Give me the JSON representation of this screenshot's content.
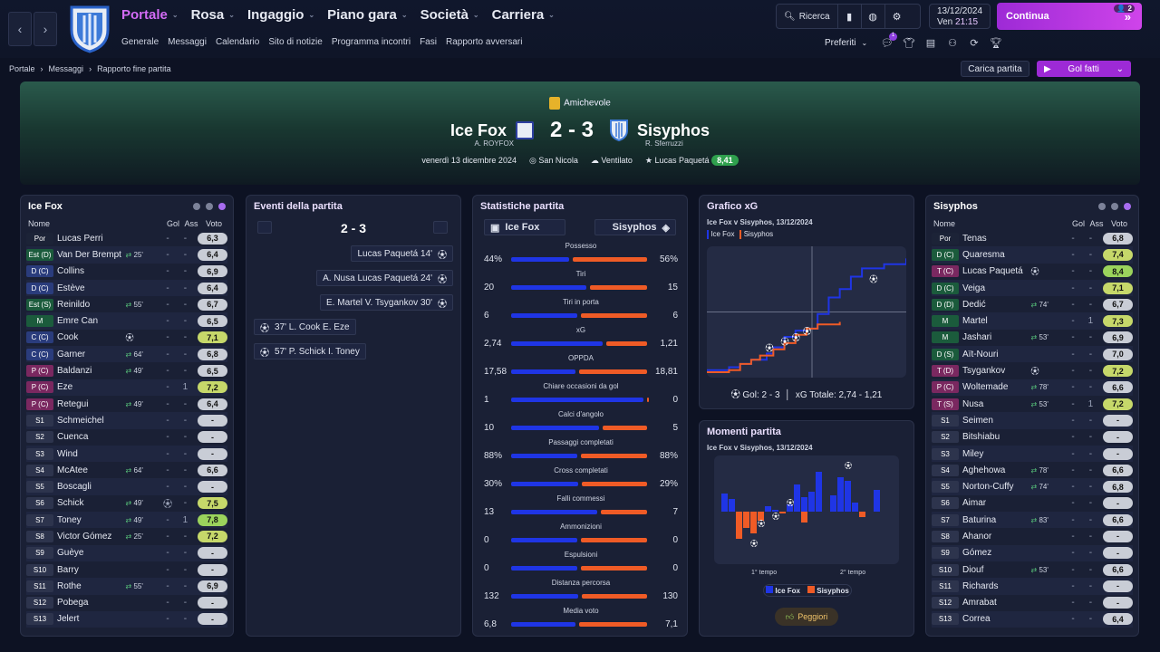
{
  "nav": {
    "main": [
      "Portale",
      "Rosa",
      "Ingaggio",
      "Piano gara",
      "Società",
      "Carriera"
    ],
    "sub": [
      "Generale",
      "Messaggi",
      "Calendario",
      "Sito di notizie",
      "Programma incontri",
      "Fasi",
      "Rapporto avversari"
    ],
    "search_label": "Ricerca",
    "date": "13/12/2024",
    "day": "Ven",
    "time": "21:15",
    "continue_label": "Continua",
    "continue_badge": "2",
    "preferiti": "Preferiti",
    "notif_count": "1"
  },
  "breadcrumb": [
    "Portale",
    "Messaggi",
    "Rapporto fine partita"
  ],
  "actions": {
    "carica": "Carica partita",
    "gol": "Gol fatti"
  },
  "match": {
    "competition": "Amichevole",
    "home": "Ice Fox",
    "away": "Sisyphos",
    "home_coach": "A. ROYFOX",
    "away_coach": "R. Sferruzzi",
    "score": "2 - 3",
    "date": "venerdì 13 dicembre 2024",
    "stadium": "San Nicola",
    "weather": "Ventilato",
    "potm": "Lucas Paquetá",
    "potm_rating": "8,41"
  },
  "cols": {
    "name": "Nome",
    "gol": "Gol",
    "ass": "Ass",
    "voto": "Voto"
  },
  "home_team": {
    "title": "Ice Fox",
    "players": [
      {
        "pos": "Por",
        "name": "Lucas Perri",
        "sub": "",
        "g": "-",
        "a": "-",
        "v": "6,3",
        "pc": "#1c2337",
        "vc": "#c9cdd6"
      },
      {
        "pos": "Est (D)",
        "name": "Van Der Brempt",
        "sub": "25'",
        "g": "-",
        "a": "-",
        "v": "6,4",
        "pc": "#1b5b3c",
        "vc": "#c9cdd6"
      },
      {
        "pos": "D (C)",
        "name": "Collins",
        "sub": "",
        "g": "-",
        "a": "-",
        "v": "6,9",
        "pc": "#2a3c7c",
        "vc": "#c9cdd6"
      },
      {
        "pos": "D (C)",
        "name": "Estève",
        "sub": "",
        "g": "-",
        "a": "-",
        "v": "6,4",
        "pc": "#2a3c7c",
        "vc": "#c9cdd6"
      },
      {
        "pos": "Est (S)",
        "name": "Reinildo",
        "sub": "55'",
        "g": "-",
        "a": "-",
        "v": "6,7",
        "pc": "#1b5b3c",
        "vc": "#c9cdd6"
      },
      {
        "pos": "M",
        "name": "Emre Can",
        "sub": "",
        "g": "-",
        "a": "-",
        "v": "6,5",
        "pc": "#1b5b3c",
        "vc": "#c9cdd6"
      },
      {
        "pos": "C (C)",
        "name": "Cook",
        "sub": "ball",
        "g": "-",
        "a": "-",
        "v": "7,1",
        "pc": "#2a3c7c",
        "vc": "#c6d86a"
      },
      {
        "pos": "C (C)",
        "name": "Garner",
        "sub": "64'",
        "g": "-",
        "a": "-",
        "v": "6,8",
        "pc": "#2a3c7c",
        "vc": "#c9cdd6"
      },
      {
        "pos": "P (C)",
        "name": "Baldanzi",
        "sub": "49'",
        "g": "-",
        "a": "-",
        "v": "6,5",
        "pc": "#7a2860",
        "vc": "#c9cdd6"
      },
      {
        "pos": "P (C)",
        "name": "Eze",
        "sub": "",
        "g": "-",
        "a": "1",
        "v": "7,2",
        "pc": "#7a2860",
        "vc": "#c6d86a"
      },
      {
        "pos": "P (C)",
        "name": "Retegui",
        "sub": "49'",
        "g": "-",
        "a": "-",
        "v": "6,4",
        "pc": "#7a2860",
        "vc": "#c9cdd6"
      },
      {
        "pos": "S1",
        "name": "Schmeichel",
        "sub": "",
        "g": "-",
        "a": "-",
        "v": "-",
        "pc": "#2d344d",
        "vc": "#c9cdd6"
      },
      {
        "pos": "S2",
        "name": "Cuenca",
        "sub": "",
        "g": "-",
        "a": "-",
        "v": "-",
        "pc": "#2d344d",
        "vc": "#c9cdd6"
      },
      {
        "pos": "S3",
        "name": "Wind",
        "sub": "",
        "g": "-",
        "a": "-",
        "v": "-",
        "pc": "#2d344d",
        "vc": "#c9cdd6"
      },
      {
        "pos": "S4",
        "name": "McAtee",
        "sub": "64'",
        "g": "-",
        "a": "-",
        "v": "6,6",
        "pc": "#2d344d",
        "vc": "#c9cdd6"
      },
      {
        "pos": "S5",
        "name": "Boscagli",
        "sub": "",
        "g": "-",
        "a": "-",
        "v": "-",
        "pc": "#2d344d",
        "vc": "#c9cdd6"
      },
      {
        "pos": "S6",
        "name": "Schick",
        "sub": "49'",
        "g": "ball",
        "a": "-",
        "v": "7,5",
        "pc": "#2d344d",
        "vc": "#c6d86a"
      },
      {
        "pos": "S7",
        "name": "Toney",
        "sub": "49'",
        "g": "-",
        "a": "1",
        "v": "7,8",
        "pc": "#2d344d",
        "vc": "#9bd35c"
      },
      {
        "pos": "S8",
        "name": "Victor Gómez",
        "sub": "25'",
        "g": "-",
        "a": "-",
        "v": "7,2",
        "pc": "#2d344d",
        "vc": "#c6d86a"
      },
      {
        "pos": "S9",
        "name": "Guèye",
        "sub": "",
        "g": "-",
        "a": "-",
        "v": "-",
        "pc": "#2d344d",
        "vc": "#c9cdd6"
      },
      {
        "pos": "S10",
        "name": "Barry",
        "sub": "",
        "g": "-",
        "a": "-",
        "v": "-",
        "pc": "#2d344d",
        "vc": "#c9cdd6"
      },
      {
        "pos": "S11",
        "name": "Rothe",
        "sub": "55'",
        "g": "-",
        "a": "-",
        "v": "6,9",
        "pc": "#2d344d",
        "vc": "#c9cdd6"
      },
      {
        "pos": "S12",
        "name": "Pobega",
        "sub": "",
        "g": "-",
        "a": "-",
        "v": "-",
        "pc": "#2d344d",
        "vc": "#c9cdd6"
      },
      {
        "pos": "S13",
        "name": "Jelert",
        "sub": "",
        "g": "-",
        "a": "-",
        "v": "-",
        "pc": "#2d344d",
        "vc": "#c9cdd6"
      }
    ]
  },
  "away_team": {
    "title": "Sisyphos",
    "players": [
      {
        "pos": "Por",
        "name": "Tenas",
        "sub": "",
        "g": "-",
        "a": "-",
        "v": "6,8",
        "pc": "#1c2337",
        "vc": "#c9cdd6"
      },
      {
        "pos": "D (C)",
        "name": "Quaresma",
        "sub": "",
        "g": "-",
        "a": "-",
        "v": "7,4",
        "pc": "#1b5b3c",
        "vc": "#c6d86a"
      },
      {
        "pos": "T (C)",
        "name": "Lucas Paquetá",
        "sub": "ball",
        "g": "-",
        "a": "-",
        "v": "8,4",
        "pc": "#7a2860",
        "vc": "#9bd35c"
      },
      {
        "pos": "D (C)",
        "name": "Veiga",
        "sub": "",
        "g": "-",
        "a": "-",
        "v": "7,1",
        "pc": "#1b5b3c",
        "vc": "#c6d86a"
      },
      {
        "pos": "D (D)",
        "name": "Dedić",
        "sub": "74'",
        "g": "-",
        "a": "-",
        "v": "6,7",
        "pc": "#1b5b3c",
        "vc": "#c9cdd6"
      },
      {
        "pos": "M",
        "name": "Martel",
        "sub": "",
        "g": "-",
        "a": "1",
        "v": "7,3",
        "pc": "#1b5b3c",
        "vc": "#c6d86a"
      },
      {
        "pos": "M",
        "name": "Jashari",
        "sub": "53'",
        "g": "-",
        "a": "-",
        "v": "6,9",
        "pc": "#1b5b3c",
        "vc": "#c9cdd6"
      },
      {
        "pos": "D (S)",
        "name": "Aït-Nouri",
        "sub": "",
        "g": "-",
        "a": "-",
        "v": "7,0",
        "pc": "#1b5b3c",
        "vc": "#c9cdd6"
      },
      {
        "pos": "T (D)",
        "name": "Tsygankov",
        "sub": "ball",
        "g": "-",
        "a": "-",
        "v": "7,2",
        "pc": "#7a2860",
        "vc": "#c6d86a"
      },
      {
        "pos": "P (C)",
        "name": "Woltemade",
        "sub": "78'",
        "g": "-",
        "a": "-",
        "v": "6,6",
        "pc": "#7a2860",
        "vc": "#c9cdd6"
      },
      {
        "pos": "T (S)",
        "name": "Nusa",
        "sub": "53'",
        "g": "-",
        "a": "1",
        "v": "7,2",
        "pc": "#7a2860",
        "vc": "#c6d86a"
      },
      {
        "pos": "S1",
        "name": "Seimen",
        "sub": "",
        "g": "-",
        "a": "-",
        "v": "-",
        "pc": "#2d344d",
        "vc": "#c9cdd6"
      },
      {
        "pos": "S2",
        "name": "Bitshiabu",
        "sub": "",
        "g": "-",
        "a": "-",
        "v": "-",
        "pc": "#2d344d",
        "vc": "#c9cdd6"
      },
      {
        "pos": "S3",
        "name": "Miley",
        "sub": "",
        "g": "-",
        "a": "-",
        "v": "-",
        "pc": "#2d344d",
        "vc": "#c9cdd6"
      },
      {
        "pos": "S4",
        "name": "Aghehowa",
        "sub": "78'",
        "g": "-",
        "a": "-",
        "v": "6,6",
        "pc": "#2d344d",
        "vc": "#c9cdd6"
      },
      {
        "pos": "S5",
        "name": "Norton-Cuffy",
        "sub": "74'",
        "g": "-",
        "a": "-",
        "v": "6,8",
        "pc": "#2d344d",
        "vc": "#c9cdd6"
      },
      {
        "pos": "S6",
        "name": "Aimar",
        "sub": "",
        "g": "-",
        "a": "-",
        "v": "-",
        "pc": "#2d344d",
        "vc": "#c9cdd6"
      },
      {
        "pos": "S7",
        "name": "Baturina",
        "sub": "83'",
        "g": "-",
        "a": "-",
        "v": "6,6",
        "pc": "#2d344d",
        "vc": "#c9cdd6"
      },
      {
        "pos": "S8",
        "name": "Ahanor",
        "sub": "",
        "g": "-",
        "a": "-",
        "v": "-",
        "pc": "#2d344d",
        "vc": "#c9cdd6"
      },
      {
        "pos": "S9",
        "name": "Gómez",
        "sub": "",
        "g": "-",
        "a": "-",
        "v": "-",
        "pc": "#2d344d",
        "vc": "#c9cdd6"
      },
      {
        "pos": "S10",
        "name": "Diouf",
        "sub": "53'",
        "g": "-",
        "a": "-",
        "v": "6,6",
        "pc": "#2d344d",
        "vc": "#c9cdd6"
      },
      {
        "pos": "S11",
        "name": "Richards",
        "sub": "",
        "g": "-",
        "a": "-",
        "v": "-",
        "pc": "#2d344d",
        "vc": "#c9cdd6"
      },
      {
        "pos": "S12",
        "name": "Amrabat",
        "sub": "",
        "g": "-",
        "a": "-",
        "v": "-",
        "pc": "#2d344d",
        "vc": "#c9cdd6"
      },
      {
        "pos": "S13",
        "name": "Correa",
        "sub": "",
        "g": "-",
        "a": "-",
        "v": "6,4",
        "pc": "#2d344d",
        "vc": "#c9cdd6"
      }
    ]
  },
  "events": {
    "title": "Eventi della partita",
    "score": "2 - 3",
    "away": [
      "Lucas Paquetá 14'",
      "A. Nusa Lucas Paquetá 24'",
      "E. Martel V. Tsygankov 30'"
    ],
    "home": [
      "37' L. Cook E. Eze",
      "57' P. Schick I. Toney"
    ]
  },
  "stats": {
    "title": "Statistiche partita",
    "home": "Ice Fox",
    "away": "Sisyphos",
    "rows": [
      {
        "label": "Possesso",
        "l": "44%",
        "r": "56%",
        "lv": 44,
        "rv": 56
      },
      {
        "label": "Tiri",
        "l": "20",
        "r": "15",
        "lv": 20,
        "rv": 15
      },
      {
        "label": "Tiri in porta",
        "l": "6",
        "r": "6",
        "lv": 6,
        "rv": 6
      },
      {
        "label": "xG",
        "l": "2,74",
        "r": "1,21",
        "lv": 2.74,
        "rv": 1.21
      },
      {
        "label": "OPPDA",
        "l": "17,58",
        "r": "18,81",
        "lv": 17.58,
        "rv": 18.81
      },
      {
        "label": "Chiare occasioni da gol",
        "l": "1",
        "r": "0",
        "lv": 1,
        "rv": 0
      },
      {
        "label": "Calci d'angolo",
        "l": "10",
        "r": "5",
        "lv": 10,
        "rv": 5
      },
      {
        "label": "Passaggi completati",
        "l": "88%",
        "r": "88%",
        "lv": 88,
        "rv": 88
      },
      {
        "label": "Cross completati",
        "l": "30%",
        "r": "29%",
        "lv": 30,
        "rv": 29
      },
      {
        "label": "Falli commessi",
        "l": "13",
        "r": "7",
        "lv": 13,
        "rv": 7
      },
      {
        "label": "Ammonizioni",
        "l": "0",
        "r": "0",
        "lv": 0,
        "rv": 0
      },
      {
        "label": "Espulsioni",
        "l": "0",
        "r": "0",
        "lv": 0,
        "rv": 0
      },
      {
        "label": "Distanza percorsa",
        "l": "132",
        "r": "130",
        "lv": 132,
        "rv": 130
      },
      {
        "label": "Media voto",
        "l": "6,8",
        "r": "7,1",
        "lv": 6.8,
        "rv": 7.1
      }
    ]
  },
  "xg": {
    "title": "Grafico xG",
    "subtitle": "Ice Fox v Sisyphos, 13/12/2024",
    "legend": [
      "Ice Fox",
      "Sisyphos"
    ],
    "footer_goals": "Gol: 2 - 3",
    "footer_xg": "xG Totale: 2,74 - 1,21"
  },
  "moments": {
    "title": "Momenti partita",
    "subtitle": "Ice Fox v Sisyphos, 13/12/2024",
    "half1": "1° tempo",
    "half2": "2° tempo",
    "legend": [
      "Ice Fox",
      "Sisyphos"
    ],
    "button": "Peggiori"
  },
  "chart_data": [
    {
      "type": "line",
      "title": "Grafico xG",
      "series": [
        {
          "name": "Ice Fox",
          "x": [
            0,
            10,
            15,
            20,
            27,
            30,
            35,
            40,
            45,
            50,
            55,
            60,
            65,
            70,
            80,
            90
          ],
          "values": [
            0.05,
            0.12,
            0.2,
            0.3,
            0.45,
            0.6,
            0.85,
            1.0,
            1.05,
            1.4,
            1.8,
            2.0,
            2.3,
            2.5,
            2.6,
            2.74
          ]
        },
        {
          "name": "Sisyphos",
          "x": [
            0,
            10,
            15,
            20,
            24,
            30,
            35,
            40,
            45,
            50,
            60
          ],
          "values": [
            0,
            0.05,
            0.2,
            0.3,
            0.4,
            0.55,
            0.7,
            0.9,
            1.05,
            1.15,
            1.21
          ]
        }
      ]
    },
    {
      "type": "bar",
      "title": "Momenti partita",
      "categories": [
        "1",
        "2",
        "3",
        "4",
        "5",
        "6",
        "7",
        "8",
        "9",
        "10",
        "11",
        "12",
        "13",
        "14",
        "15",
        "16",
        "17",
        "18",
        "19",
        "20",
        "21",
        "22",
        "23",
        "24"
      ],
      "series": [
        {
          "name": "Ice Fox",
          "values": [
            0.5,
            0.35,
            0,
            0,
            0,
            0,
            0.15,
            0.05,
            0,
            0.2,
            0.75,
            0.4,
            0.55,
            1.1,
            0,
            0.45,
            0.95,
            0.85,
            0.25,
            0,
            0,
            0.6,
            0,
            0
          ]
        },
        {
          "name": "Sisyphos",
          "values": [
            0,
            0,
            0.75,
            0.45,
            0.6,
            0.25,
            0,
            0,
            0.05,
            0,
            0,
            0.3,
            0,
            0,
            0,
            0,
            0,
            0,
            0,
            0.15,
            0,
            0,
            0,
            0
          ]
        }
      ]
    }
  ]
}
